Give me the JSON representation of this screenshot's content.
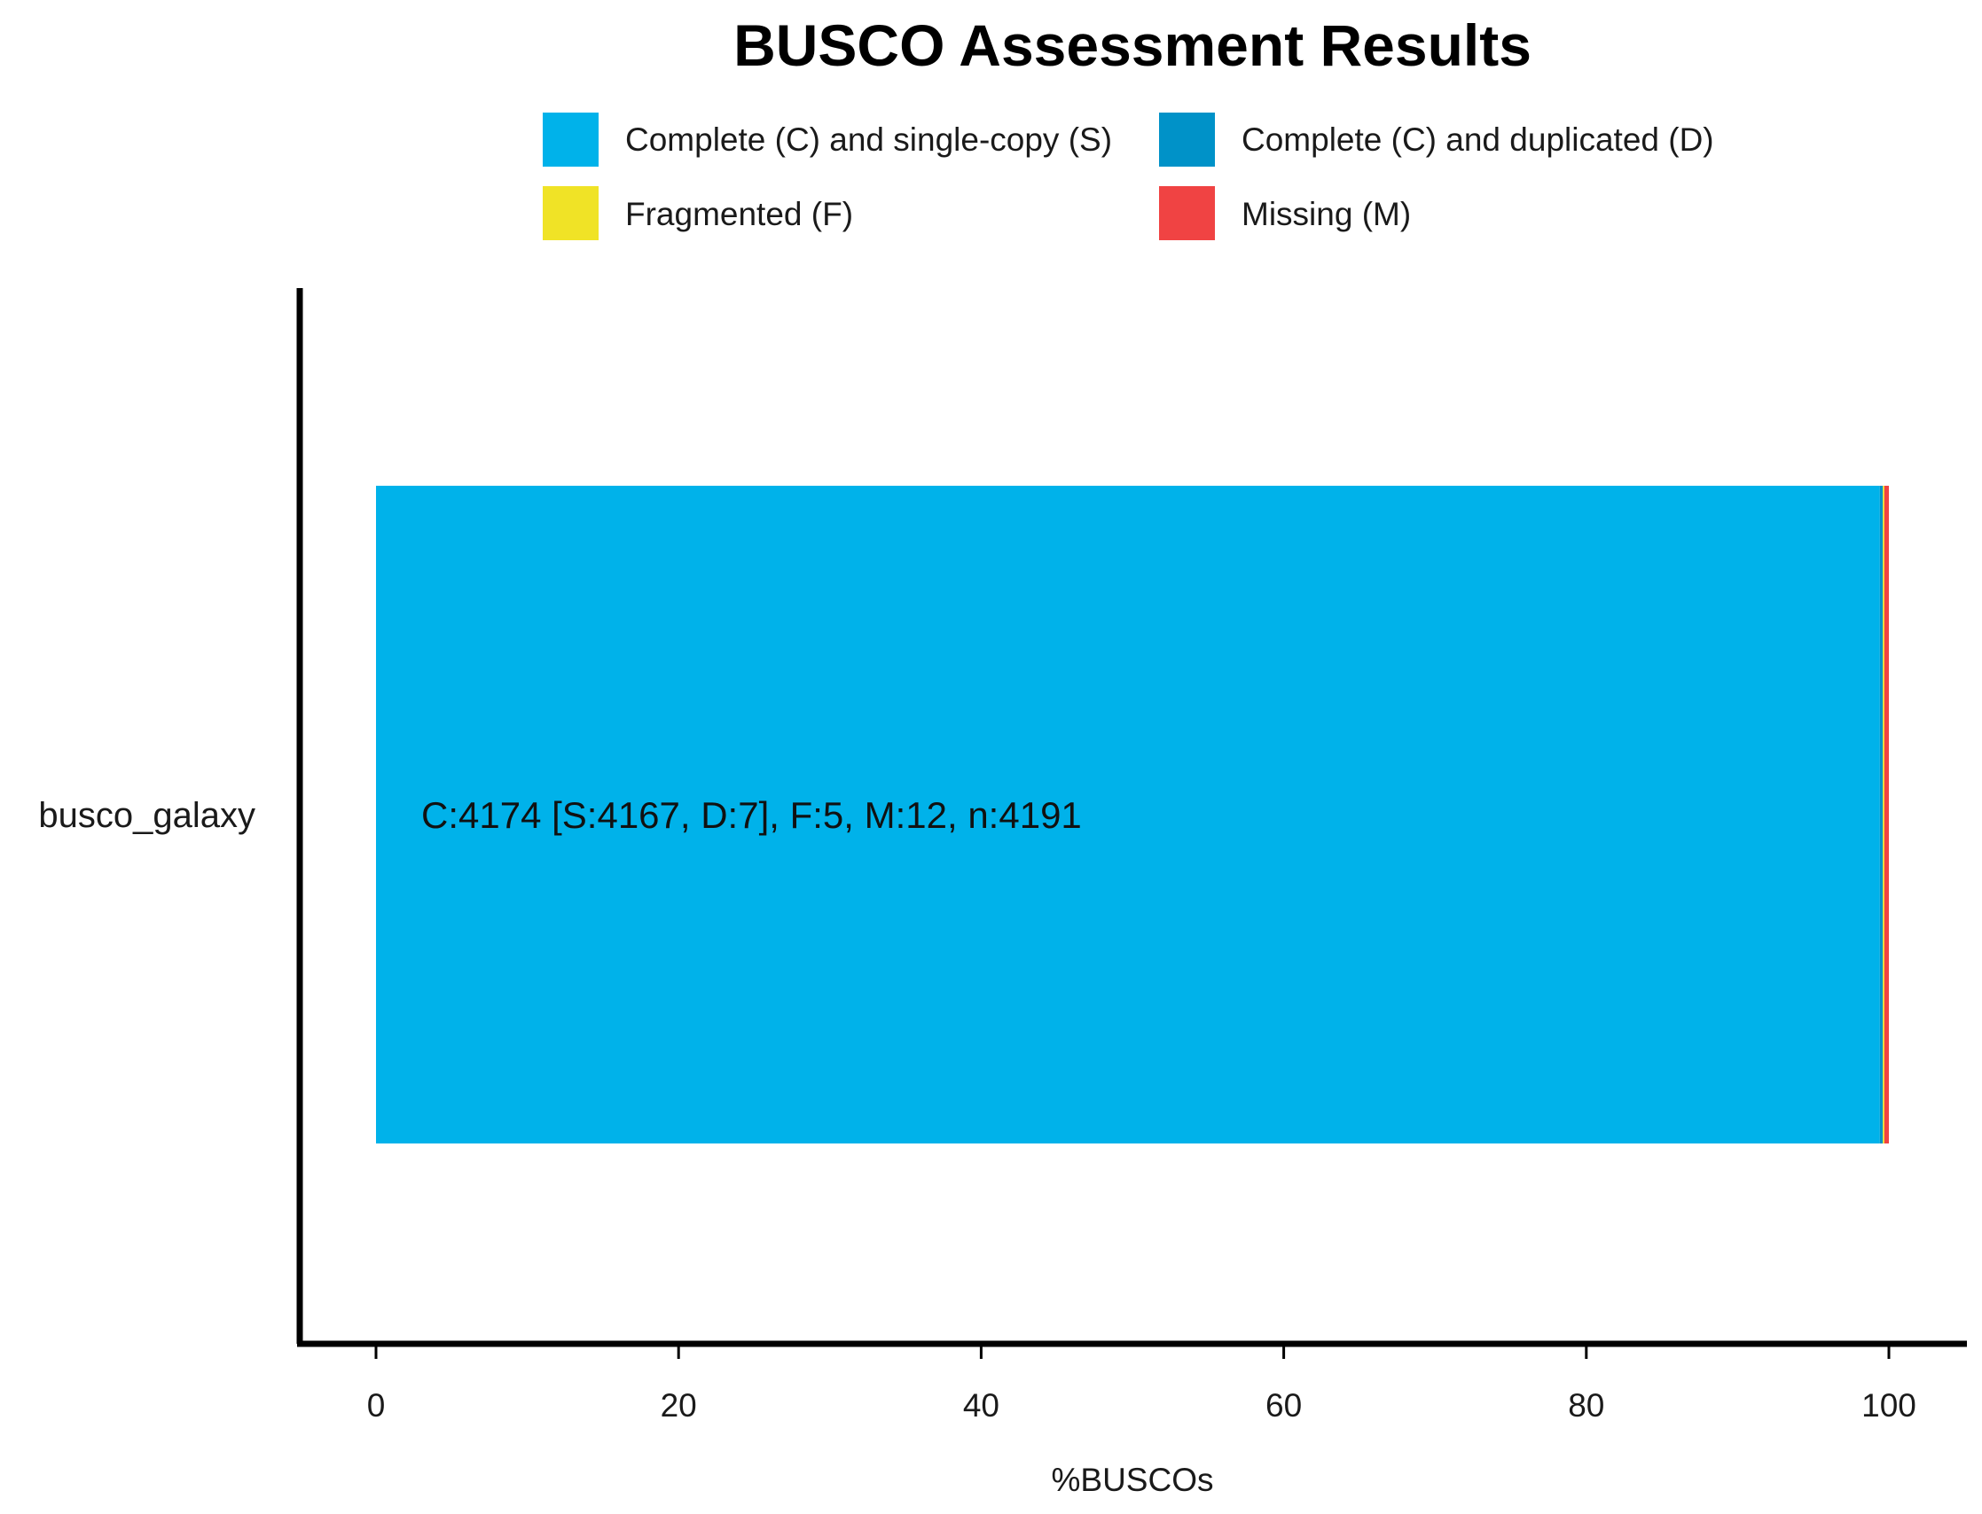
{
  "chart_data": {
    "type": "bar",
    "orientation": "horizontal",
    "stacked": true,
    "title": "BUSCO Assessment Results",
    "xlabel": "%BUSCOs",
    "ylabel": "",
    "xlim": [
      0,
      100
    ],
    "xticks": [
      0,
      20,
      40,
      60,
      80,
      100
    ],
    "tick_labels": [
      "0",
      "20",
      "40",
      "60",
      "80",
      "100"
    ],
    "grid": false,
    "legend_position": "top",
    "categories": [
      "busco_galaxy"
    ],
    "bar_labels": [
      "C:4174 [S:4167, D:7], F:5, M:12, n:4191"
    ],
    "series": [
      {
        "name": "Complete (C) and single-copy (S)",
        "values": [
          99.4
        ],
        "color": "#00b2ea"
      },
      {
        "name": "Complete (C) and duplicated (D)",
        "values": [
          0.2
        ],
        "color": "#0092c8"
      },
      {
        "name": "Fragmented (F)",
        "values": [
          0.1
        ],
        "color": "#f0e326"
      },
      {
        "name": "Missing (M)",
        "values": [
          0.3
        ],
        "color": "#f04343"
      }
    ]
  }
}
